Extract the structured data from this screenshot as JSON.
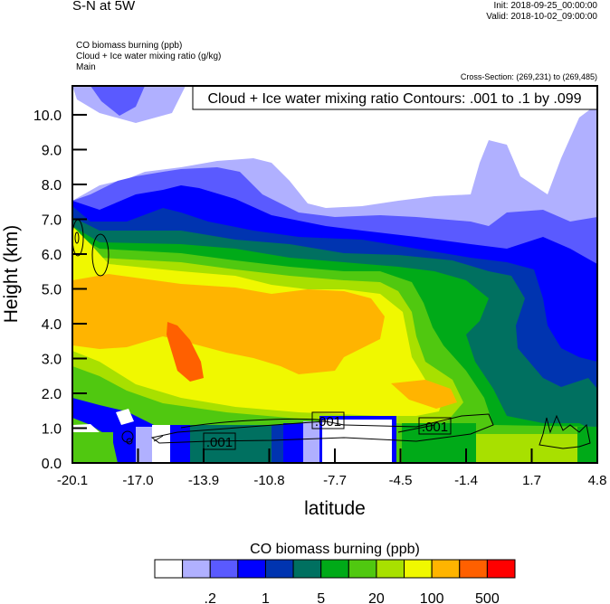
{
  "header": {
    "title": "S-N at 5W",
    "init": "Init: 2018-09-25_00:00:00",
    "valid": "Valid: 2018-10-02_09:00:00",
    "variables": [
      "CO biomass burning   (ppb)",
      "Cloud + Ice water mixing ratio   (g/kg)",
      "Main"
    ],
    "cross_section": "Cross-Section: (269,231) to (269,485)"
  },
  "chart_data": {
    "type": "heatmap",
    "title": "S-N at 5W",
    "xlabel": "latitude",
    "ylabel": "Height (km)",
    "xlim": [
      -20.1,
      4.8
    ],
    "ylim": [
      0,
      10.83
    ],
    "xticks": [
      "-20.1",
      "-17.0",
      "-13.9",
      "-10.8",
      "-7.7",
      "-4.5",
      "-1.4",
      "1.7",
      "4.8"
    ],
    "yticks": [
      0,
      1,
      2,
      3,
      4,
      5,
      6,
      7,
      8,
      9,
      10
    ],
    "ytick_labels": [
      "0.0",
      "1.0",
      "2.0",
      "3.0",
      "4.0",
      "5.0",
      "6.0",
      "7.0",
      "8.0",
      "9.0",
      "10.0"
    ],
    "fill_variable": "CO biomass burning (ppb)",
    "contour_legend": "Cloud + Ice water mixing ratio Contours: .001 to .1 by .099",
    "contour_labels": [
      ".001",
      ".001",
      ".001"
    ],
    "colorbar": {
      "title": "CO biomass burning  (ppb)",
      "colors": [
        "#ffffff",
        "#b0b0ff",
        "#5a5aff",
        "#0000ff",
        "#0034b0",
        "#007060",
        "#00aa18",
        "#50c810",
        "#a8e000",
        "#f0f800",
        "#ffb400",
        "#ff6000",
        "#ff0000"
      ],
      "labels": [
        ".2",
        "1",
        "5",
        "20",
        "100",
        "500"
      ],
      "label_boundaries": [
        2,
        4,
        6,
        8,
        10,
        12
      ]
    }
  }
}
